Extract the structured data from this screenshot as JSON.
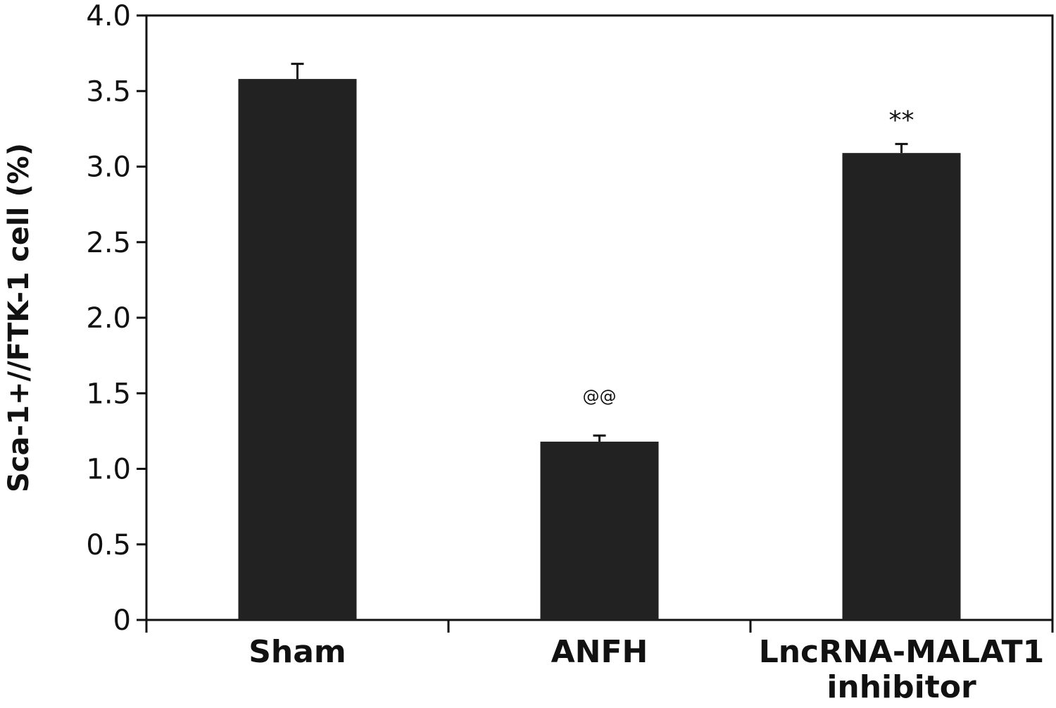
{
  "chart_data": {
    "type": "bar",
    "categories": [
      [
        "Sham"
      ],
      [
        "ANFH"
      ],
      [
        "LncRNA-MALAT1",
        "inhibitor"
      ]
    ],
    "values": [
      3.58,
      1.18,
      3.09
    ],
    "errors": [
      0.1,
      0.04,
      0.06
    ],
    "annotations": [
      "",
      "@@",
      "**"
    ],
    "ylabel": "Sca-1+//FTK-1 cell (%)",
    "ylim": [
      0,
      4.0
    ],
    "yticks": [
      0,
      0.5,
      1.0,
      1.5,
      2.0,
      2.5,
      3.0,
      3.5,
      4.0
    ],
    "ytick_labels": [
      "0",
      "0.5",
      "1.0",
      "1.5",
      "2.0",
      "2.5",
      "3.0",
      "3.5",
      "4.0"
    ],
    "bar_color": "#222222",
    "frame": "box",
    "grid": false
  }
}
